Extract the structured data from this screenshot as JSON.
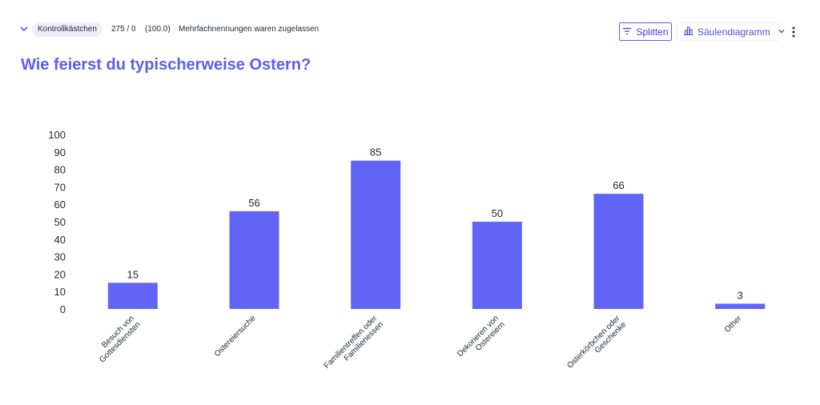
{
  "header": {
    "question_type": "Kontrollkästchen",
    "responses": "275 / 0",
    "percent": "(100.0)",
    "note": "Mehrfachnennungen waren zugelassen",
    "split_label": "Splitten",
    "chart_type_label": "Säulendiagramm"
  },
  "colors": {
    "bar": "#6164f5",
    "accent": "#5a5ff0"
  },
  "chart_data": {
    "type": "bar",
    "title": "Wie feierst du typischerweise Ostern?",
    "categories": [
      [
        "Besuch von",
        "Gottesdiensten"
      ],
      [
        "Ostereiersuche"
      ],
      [
        "Familientreffen oder",
        "Familienessen"
      ],
      [
        "Dekorieren von",
        "Ostereiern"
      ],
      [
        "Osterkörbchen oder",
        "Geschenke"
      ],
      [
        "Other"
      ]
    ],
    "values": [
      15,
      56,
      85,
      50,
      66,
      3
    ],
    "ylim": [
      0,
      100
    ],
    "yticks": [
      0,
      10,
      20,
      30,
      40,
      50,
      60,
      70,
      80,
      90,
      100
    ],
    "grid": false,
    "legend": "none"
  }
}
